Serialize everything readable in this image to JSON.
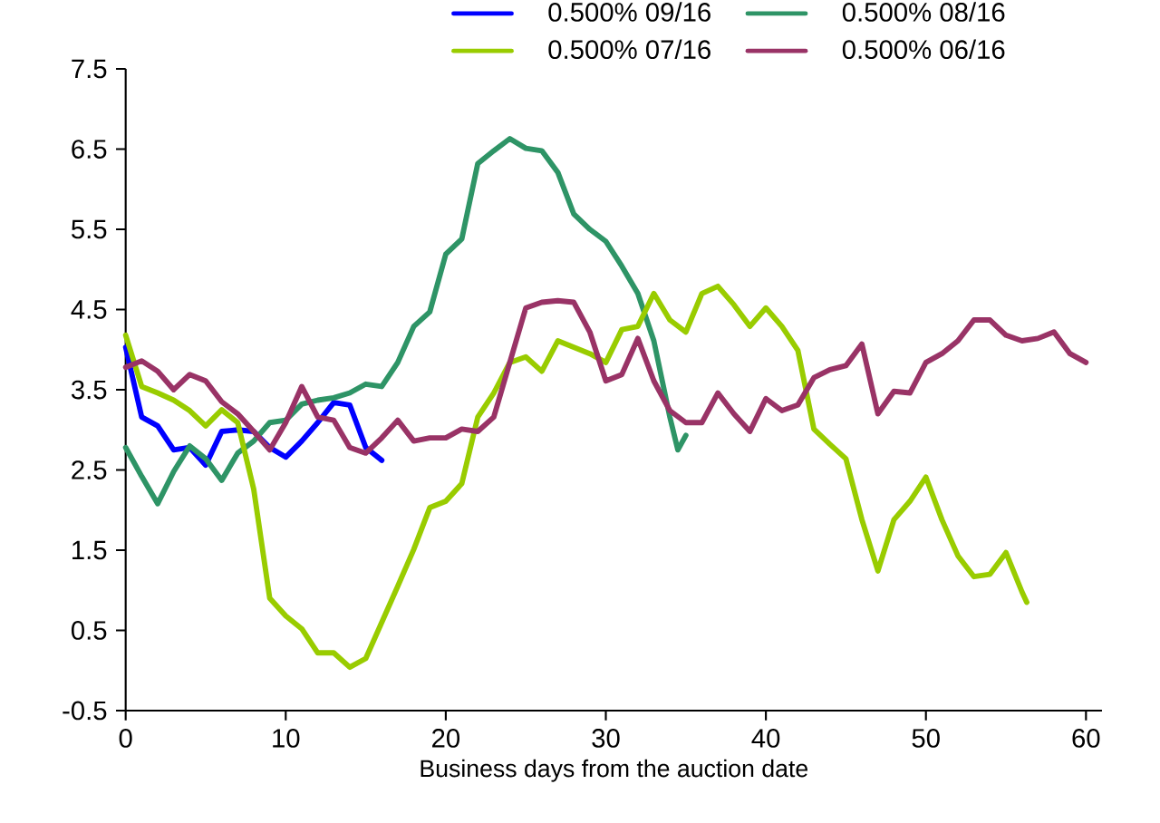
{
  "chart_data": {
    "type": "line",
    "xlabel": "Business days from the auction date",
    "xlim": [
      0,
      61
    ],
    "ylim": [
      -0.5,
      7.5
    ],
    "xticks": [
      0,
      10,
      20,
      30,
      40,
      50,
      60
    ],
    "yticks": [
      -0.5,
      0.5,
      1.5,
      2.5,
      3.5,
      4.5,
      5.5,
      6.5,
      7.5
    ],
    "grid": false,
    "legend": "top",
    "marker": "none",
    "line_style": "solid",
    "series": [
      {
        "name": "0.500% 09/16",
        "color": "#0000ff",
        "x": [
          0,
          1,
          2,
          3,
          4,
          5,
          6,
          7,
          8,
          9,
          10,
          11,
          12,
          13,
          14,
          15,
          16
        ],
        "values": [
          4.03,
          3.16,
          3.05,
          2.75,
          2.78,
          2.56,
          2.98,
          3.0,
          2.98,
          2.78,
          2.66,
          2.86,
          3.09,
          3.34,
          3.31,
          2.78,
          2.62
        ]
      },
      {
        "name": "0.500% 08/16",
        "color": "#2e9466",
        "x": [
          0,
          1,
          2,
          3,
          4,
          5,
          6,
          7,
          8,
          9,
          10,
          11,
          12,
          13,
          14,
          15,
          16,
          17,
          18,
          19,
          20,
          21,
          22,
          23,
          24,
          25,
          26,
          27,
          28,
          29,
          30,
          31,
          32,
          33,
          34,
          34.5,
          35
        ],
        "values": [
          2.78,
          2.42,
          2.08,
          2.48,
          2.8,
          2.64,
          2.37,
          2.71,
          2.86,
          3.09,
          3.12,
          3.32,
          3.37,
          3.4,
          3.46,
          3.57,
          3.54,
          3.84,
          4.29,
          4.47,
          5.19,
          5.38,
          6.32,
          6.48,
          6.63,
          6.51,
          6.48,
          6.21,
          5.69,
          5.5,
          5.35,
          5.04,
          4.7,
          4.11,
          3.16,
          2.75,
          2.93
        ]
      },
      {
        "name": "0.500% 07/16",
        "color": "#99cc00",
        "x": [
          0,
          1,
          2,
          3,
          4,
          5,
          6,
          7,
          8,
          9,
          10,
          11,
          12,
          13,
          14,
          15,
          16,
          17,
          18,
          19,
          20,
          21,
          22,
          23,
          24,
          25,
          26,
          27,
          28,
          29,
          30,
          31,
          32,
          33,
          34,
          35,
          36,
          37,
          38,
          39,
          40,
          41,
          42,
          43,
          44,
          45,
          46,
          47,
          48,
          49,
          50,
          51,
          52,
          53,
          54,
          55,
          56,
          56.3
        ],
        "values": [
          4.18,
          3.54,
          3.46,
          3.37,
          3.24,
          3.05,
          3.25,
          3.09,
          2.26,
          0.9,
          0.68,
          0.52,
          0.22,
          0.22,
          0.04,
          0.15,
          0.6,
          1.05,
          1.51,
          2.03,
          2.11,
          2.33,
          3.16,
          3.46,
          3.84,
          3.91,
          3.73,
          4.11,
          4.03,
          3.95,
          3.84,
          4.25,
          4.29,
          4.7,
          4.37,
          4.22,
          4.7,
          4.79,
          4.56,
          4.29,
          4.52,
          4.29,
          3.99,
          3.01,
          2.82,
          2.64,
          1.88,
          1.24,
          1.88,
          2.11,
          2.41,
          1.88,
          1.43,
          1.17,
          1.2,
          1.47,
          0.98,
          0.85
        ]
      },
      {
        "name": "0.500% 06/16",
        "color": "#993366",
        "x": [
          0,
          1,
          2,
          3,
          4,
          5,
          6,
          7,
          8,
          9,
          10,
          11,
          12,
          13,
          14,
          15,
          16,
          17,
          18,
          19,
          20,
          21,
          22,
          23,
          24,
          25,
          26,
          27,
          28,
          29,
          30,
          31,
          32,
          33,
          34,
          35,
          36,
          37,
          38,
          39,
          40,
          41,
          42,
          43,
          44,
          45,
          46,
          47,
          48,
          49,
          50,
          51,
          52,
          53,
          54,
          55,
          56,
          57,
          58,
          59,
          60
        ],
        "values": [
          3.78,
          3.86,
          3.73,
          3.5,
          3.69,
          3.61,
          3.35,
          3.2,
          2.98,
          2.75,
          3.09,
          3.54,
          3.16,
          3.12,
          2.78,
          2.71,
          2.9,
          3.12,
          2.86,
          2.9,
          2.9,
          3.01,
          2.98,
          3.16,
          3.84,
          4.52,
          4.59,
          4.61,
          4.59,
          4.22,
          3.61,
          3.69,
          4.14,
          3.61,
          3.24,
          3.09,
          3.09,
          3.46,
          3.2,
          2.98,
          3.39,
          3.24,
          3.31,
          3.65,
          3.75,
          3.8,
          4.07,
          3.2,
          3.48,
          3.46,
          3.84,
          3.95,
          4.11,
          4.37,
          4.37,
          4.18,
          4.11,
          4.14,
          4.22,
          3.95,
          3.84
        ]
      }
    ]
  }
}
